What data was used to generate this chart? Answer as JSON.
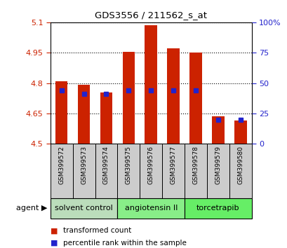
{
  "title": "GDS3556 / 211562_s_at",
  "samples": [
    "GSM399572",
    "GSM399573",
    "GSM399574",
    "GSM399575",
    "GSM399576",
    "GSM399577",
    "GSM399578",
    "GSM399579",
    "GSM399580"
  ],
  "transformed_counts": [
    4.81,
    4.79,
    4.755,
    4.955,
    5.085,
    4.97,
    4.95,
    4.635,
    4.615
  ],
  "percentile_ranks_pct": [
    44,
    41,
    41,
    44,
    44,
    44,
    44,
    20,
    20
  ],
  "ymin": 4.5,
  "ymax": 5.1,
  "yticks": [
    4.5,
    4.65,
    4.8,
    4.95,
    5.1
  ],
  "ytick_labels": [
    "4.5",
    "4.65",
    "4.8",
    "4.95",
    "5.1"
  ],
  "right_yticks": [
    0,
    25,
    50,
    75,
    100
  ],
  "right_ytick_labels": [
    "0",
    "25",
    "50",
    "75",
    "100%"
  ],
  "bar_color": "#cc2200",
  "dot_color": "#2222cc",
  "bar_base": 4.5,
  "groups": [
    {
      "label": "solvent control",
      "samples": [
        0,
        1,
        2
      ],
      "color": "#bbddbb"
    },
    {
      "label": "angiotensin II",
      "samples": [
        3,
        4,
        5
      ],
      "color": "#88ee88"
    },
    {
      "label": "torcetrapib",
      "samples": [
        6,
        7,
        8
      ],
      "color": "#66ee66"
    }
  ],
  "agent_label": "agent",
  "legend_items": [
    {
      "color": "#cc2200",
      "label": "transformed count"
    },
    {
      "color": "#2222cc",
      "label": "percentile rank within the sample"
    }
  ],
  "bar_width": 0.55,
  "background_color": "#ffffff",
  "plot_bg_color": "#ffffff",
  "tick_label_color_left": "#cc2200",
  "tick_label_color_right": "#2222cc"
}
